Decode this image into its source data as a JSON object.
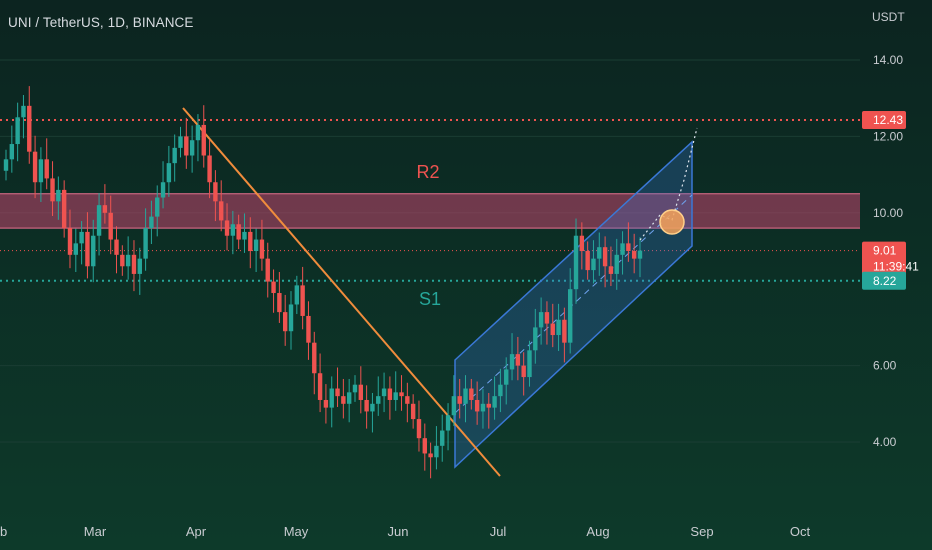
{
  "title": "UNI / TetherUS, 1D, BINANCE",
  "unit": "USDT",
  "colors": {
    "background_top": "#0c2420",
    "background_bottom": "#0d3a2a",
    "up": "#26a69a",
    "down": "#ef5350",
    "resistance_zone": "#c2466e",
    "channel": "#3a78d6",
    "trendline": "#f08c3c",
    "resistance_dotted": "#ef5350",
    "support_dotted": "#26a69a",
    "last_price_badge": "#ef5350",
    "support_badge": "#26a69a"
  },
  "chart_data": {
    "type": "candlestick",
    "x_axis_labels": [
      "eb",
      "Mar",
      "Apr",
      "May",
      "Jun",
      "Jul",
      "Aug",
      "Sep",
      "Oct"
    ],
    "y_ticks": [
      "14.00",
      "12.00",
      "10.00",
      "6.00",
      "4.00"
    ],
    "ylim": [
      3.0,
      15.0
    ],
    "price_badges": [
      {
        "label": "12.43",
        "value": 12.43,
        "color": "#ef5350"
      },
      {
        "label": "9.01",
        "sub": "11:39:41",
        "value": 9.01,
        "color": "#ef5350"
      },
      {
        "label": "8.22",
        "value": 8.22,
        "color": "#26a69a"
      }
    ],
    "annotations": [
      {
        "text": "R2",
        "color": "#ef5350"
      },
      {
        "text": "S1",
        "color": "#26a69a"
      }
    ],
    "resistance_zone": [
      9.6,
      10.5
    ],
    "support_level": 8.22,
    "resistance_level": 12.43,
    "closes": [
      11.4,
      11.8,
      12.5,
      12.8,
      11.6,
      10.8,
      11.4,
      10.9,
      10.3,
      10.6,
      9.6,
      8.9,
      9.2,
      9.5,
      8.6,
      9.4,
      10.2,
      10.0,
      9.3,
      8.9,
      8.6,
      8.9,
      8.4,
      8.8,
      9.6,
      9.9,
      10.4,
      10.8,
      11.3,
      11.7,
      12.0,
      11.5,
      11.9,
      12.3,
      11.5,
      10.8,
      10.3,
      9.8,
      9.4,
      9.7,
      9.3,
      9.5,
      9.0,
      9.3,
      8.8,
      8.2,
      7.9,
      7.4,
      6.9,
      7.6,
      8.1,
      7.3,
      6.6,
      5.8,
      5.1,
      4.9,
      5.4,
      5.2,
      5.0,
      5.3,
      5.5,
      5.1,
      4.8,
      5.0,
      5.2,
      5.4,
      5.1,
      5.3,
      5.2,
      5.0,
      4.6,
      4.1,
      3.7,
      3.6,
      3.9,
      4.3,
      4.7,
      5.2,
      5.0,
      5.4,
      5.1,
      4.8,
      5.0,
      4.9,
      5.2,
      5.5,
      5.9,
      6.3,
      6.0,
      5.7,
      6.4,
      7.0,
      7.4,
      7.1,
      6.8,
      7.2,
      6.6,
      8.0,
      9.4,
      9.0,
      8.5,
      8.8,
      9.1,
      8.6,
      8.4,
      8.9,
      9.2,
      9.0,
      8.8,
      9.01
    ]
  }
}
